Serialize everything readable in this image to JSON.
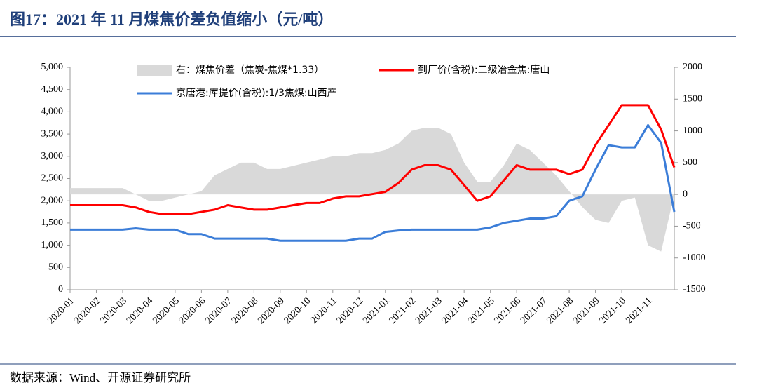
{
  "chart_data": {
    "type": "line",
    "title": "图17：2021 年 11 月煤焦价差负值缩小（元/吨）",
    "source": "数据来源：Wind、开源证券研究所",
    "legend": "top",
    "xlim": [
      0,
      23
    ],
    "xticks": [
      {
        "value": 0,
        "label": "2020-01"
      },
      {
        "value": 1,
        "label": "2020-02"
      },
      {
        "value": 2,
        "label": "2020-03"
      },
      {
        "value": 3,
        "label": "2020-04"
      },
      {
        "value": 4,
        "label": "2020-05"
      },
      {
        "value": 5,
        "label": "2020-06"
      },
      {
        "value": 6,
        "label": "2020-07"
      },
      {
        "value": 7,
        "label": "2020-08"
      },
      {
        "value": 8,
        "label": "2020-09"
      },
      {
        "value": 9,
        "label": "2020-10"
      },
      {
        "value": 10,
        "label": "2020-11"
      },
      {
        "value": 11,
        "label": "2020-12"
      },
      {
        "value": 12,
        "label": "2021-01"
      },
      {
        "value": 13,
        "label": "2021-02"
      },
      {
        "value": 14,
        "label": "2021-03"
      },
      {
        "value": 15,
        "label": "2021-04"
      },
      {
        "value": 16,
        "label": "2021-05"
      },
      {
        "value": 17,
        "label": "2021-06"
      },
      {
        "value": 18,
        "label": "2021-07"
      },
      {
        "value": 19,
        "label": "2021-08"
      },
      {
        "value": 20,
        "label": "2021-09"
      },
      {
        "value": 21,
        "label": "2021-10"
      },
      {
        "value": 22,
        "label": "2021-11"
      }
    ],
    "ylim": [
      0,
      5000
    ],
    "yticks": [
      0,
      500,
      {
        "value": 1000,
        "label": "1,000"
      },
      {
        "value": 1500,
        "label": "1,500"
      },
      {
        "value": 2000,
        "label": "2,000"
      },
      {
        "value": 2500,
        "label": "2,500"
      },
      {
        "value": 3000,
        "label": "3,000"
      },
      {
        "value": 3500,
        "label": "3,500"
      },
      {
        "value": 4000,
        "label": "4,000"
      },
      {
        "value": 4500,
        "label": "4,500"
      },
      {
        "value": 5000,
        "label": "5,000"
      }
    ],
    "y2lim": [
      -1500,
      2000
    ],
    "y2ticks": [
      -1500,
      -1000,
      -500,
      0,
      500,
      1000,
      1500,
      2000
    ],
    "x": [
      0,
      0.5,
      1,
      1.5,
      2,
      2.5,
      3,
      3.5,
      4,
      4.5,
      5,
      5.5,
      6,
      6.5,
      7,
      7.5,
      8,
      8.5,
      9,
      9.5,
      10,
      10.5,
      11,
      11.5,
      12,
      12.5,
      13,
      13.5,
      14,
      14.5,
      15,
      15.5,
      16,
      16.5,
      17,
      17.5,
      18,
      18.5,
      19,
      19.5,
      20,
      20.5,
      21,
      21.5,
      22,
      22.5,
      23
    ],
    "series": [
      {
        "name": "右：煤焦价差（焦炭-焦煤*1.33）",
        "kind": "area",
        "axis": "y2",
        "color": "#d9d9d9",
        "values": [
          100,
          100,
          100,
          100,
          100,
          0,
          -100,
          -100,
          -50,
          0,
          50,
          300,
          400,
          500,
          500,
          400,
          400,
          450,
          500,
          550,
          600,
          600,
          650,
          650,
          700,
          800,
          1000,
          1050,
          1050,
          950,
          500,
          200,
          200,
          450,
          800,
          700,
          500,
          300,
          50,
          -200,
          -400,
          -450,
          -100,
          -50,
          -800,
          -900,
          0
        ]
      },
      {
        "name": "到厂价(含税):二级冶金焦:唐山",
        "kind": "line",
        "color": "#ff0000",
        "values": [
          1900,
          1900,
          1900,
          1900,
          1900,
          1850,
          1750,
          1700,
          1700,
          1700,
          1750,
          1800,
          1900,
          1850,
          1800,
          1800,
          1850,
          1900,
          1950,
          1950,
          2050,
          2100,
          2100,
          2150,
          2200,
          2400,
          2700,
          2800,
          2800,
          2700,
          2350,
          2000,
          2100,
          2450,
          2800,
          2700,
          2700,
          2700,
          2600,
          2700,
          3250,
          3700,
          4150,
          4150,
          4150,
          3600,
          2750
        ]
      },
      {
        "name": "京唐港:库提价(含税):1/3焦煤:山西产",
        "kind": "line",
        "color": "#3b7dd8",
        "values": [
          1350,
          1350,
          1350,
          1350,
          1350,
          1380,
          1350,
          1350,
          1350,
          1250,
          1250,
          1150,
          1150,
          1150,
          1150,
          1150,
          1100,
          1100,
          1100,
          1100,
          1100,
          1100,
          1150,
          1150,
          1300,
          1330,
          1350,
          1350,
          1350,
          1350,
          1350,
          1350,
          1400,
          1500,
          1550,
          1600,
          1600,
          1650,
          2000,
          2100,
          2700,
          3250,
          3200,
          3200,
          3700,
          3300,
          1750
        ]
      }
    ]
  }
}
